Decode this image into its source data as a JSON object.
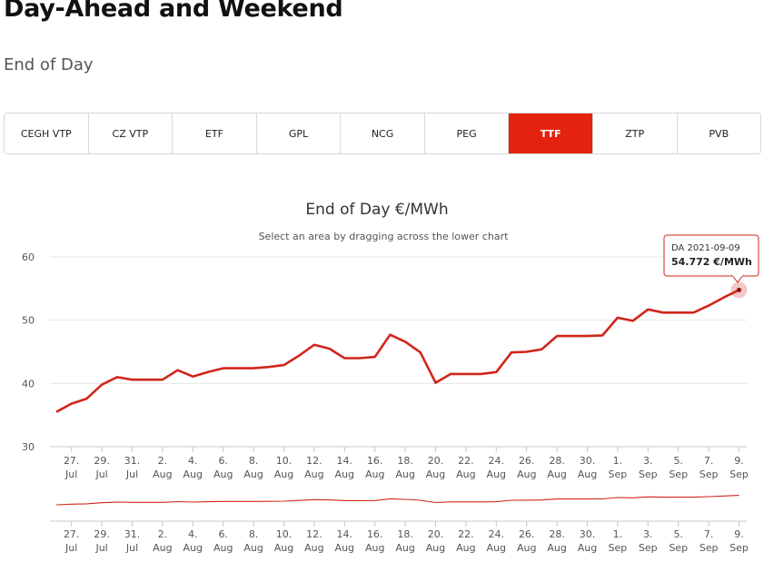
{
  "page": {
    "title": "Day-Ahead and Weekend",
    "subtitle": "End of Day"
  },
  "tabs": [
    {
      "label": "CEGH VTP",
      "active": false
    },
    {
      "label": "CZ VTP",
      "active": false
    },
    {
      "label": "ETF",
      "active": false
    },
    {
      "label": "GPL",
      "active": false
    },
    {
      "label": "NCG",
      "active": false
    },
    {
      "label": "PEG",
      "active": false
    },
    {
      "label": "TTF",
      "active": true
    },
    {
      "label": "ZTP",
      "active": false
    },
    {
      "label": "PVB",
      "active": false
    }
  ],
  "colors": {
    "accent": "#e3230f",
    "line": "#d0261b",
    "grid": "#e6e6e6"
  },
  "tooltip": {
    "date": "DA 2021-09-09",
    "value": "54.772 €/MWh"
  },
  "chart_data": {
    "type": "line",
    "title": "End of Day €/MWh",
    "subtitle": "Select an area by dragging across the lower chart",
    "ylim": [
      30,
      60
    ],
    "yticks": [
      30,
      40,
      50,
      60
    ],
    "grid": true,
    "xticks": [
      {
        "day": "27.",
        "month": "Jul"
      },
      {
        "day": "29.",
        "month": "Jul"
      },
      {
        "day": "31.",
        "month": "Jul"
      },
      {
        "day": "2.",
        "month": "Aug"
      },
      {
        "day": "4.",
        "month": "Aug"
      },
      {
        "day": "6.",
        "month": "Aug"
      },
      {
        "day": "8.",
        "month": "Aug"
      },
      {
        "day": "10.",
        "month": "Aug"
      },
      {
        "day": "12.",
        "month": "Aug"
      },
      {
        "day": "14.",
        "month": "Aug"
      },
      {
        "day": "16.",
        "month": "Aug"
      },
      {
        "day": "18.",
        "month": "Aug"
      },
      {
        "day": "20.",
        "month": "Aug"
      },
      {
        "day": "22.",
        "month": "Aug"
      },
      {
        "day": "24.",
        "month": "Aug"
      },
      {
        "day": "26.",
        "month": "Aug"
      },
      {
        "day": "28.",
        "month": "Aug"
      },
      {
        "day": "30.",
        "month": "Aug"
      },
      {
        "day": "1.",
        "month": "Sep"
      },
      {
        "day": "3.",
        "month": "Sep"
      },
      {
        "day": "5.",
        "month": "Sep"
      },
      {
        "day": "7.",
        "month": "Sep"
      },
      {
        "day": "9.",
        "month": "Sep"
      }
    ],
    "series": [
      {
        "x": [
          "2021-07-26",
          "2021-07-27",
          "2021-07-28",
          "2021-07-29",
          "2021-07-30",
          "2021-07-31",
          "2021-08-01",
          "2021-08-02",
          "2021-08-03",
          "2021-08-04",
          "2021-08-05",
          "2021-08-06",
          "2021-08-07",
          "2021-08-08",
          "2021-08-09",
          "2021-08-10",
          "2021-08-11",
          "2021-08-12",
          "2021-08-13",
          "2021-08-14",
          "2021-08-15",
          "2021-08-16",
          "2021-08-17",
          "2021-08-18",
          "2021-08-19",
          "2021-08-20",
          "2021-08-21",
          "2021-08-22",
          "2021-08-23",
          "2021-08-24",
          "2021-08-25",
          "2021-08-26",
          "2021-08-27",
          "2021-08-28",
          "2021-08-29",
          "2021-08-30",
          "2021-08-31",
          "2021-09-01",
          "2021-09-02",
          "2021-09-03",
          "2021-09-04",
          "2021-09-05",
          "2021-09-06",
          "2021-09-07",
          "2021-09-08",
          "2021-09-09"
        ],
        "values": [
          35.5,
          36.8,
          37.6,
          39.8,
          41.0,
          40.6,
          40.6,
          40.6,
          42.1,
          41.1,
          41.8,
          42.4,
          42.4,
          42.4,
          42.6,
          42.9,
          44.4,
          46.1,
          45.5,
          44.0,
          44.0,
          44.2,
          47.7,
          46.6,
          44.9,
          40.1,
          41.5,
          41.5,
          41.5,
          41.8,
          44.9,
          45.0,
          45.4,
          47.5,
          47.5,
          47.5,
          47.6,
          50.4,
          49.9,
          51.7,
          51.2,
          51.2,
          51.2,
          52.3,
          53.6,
          54.772
        ]
      }
    ]
  }
}
